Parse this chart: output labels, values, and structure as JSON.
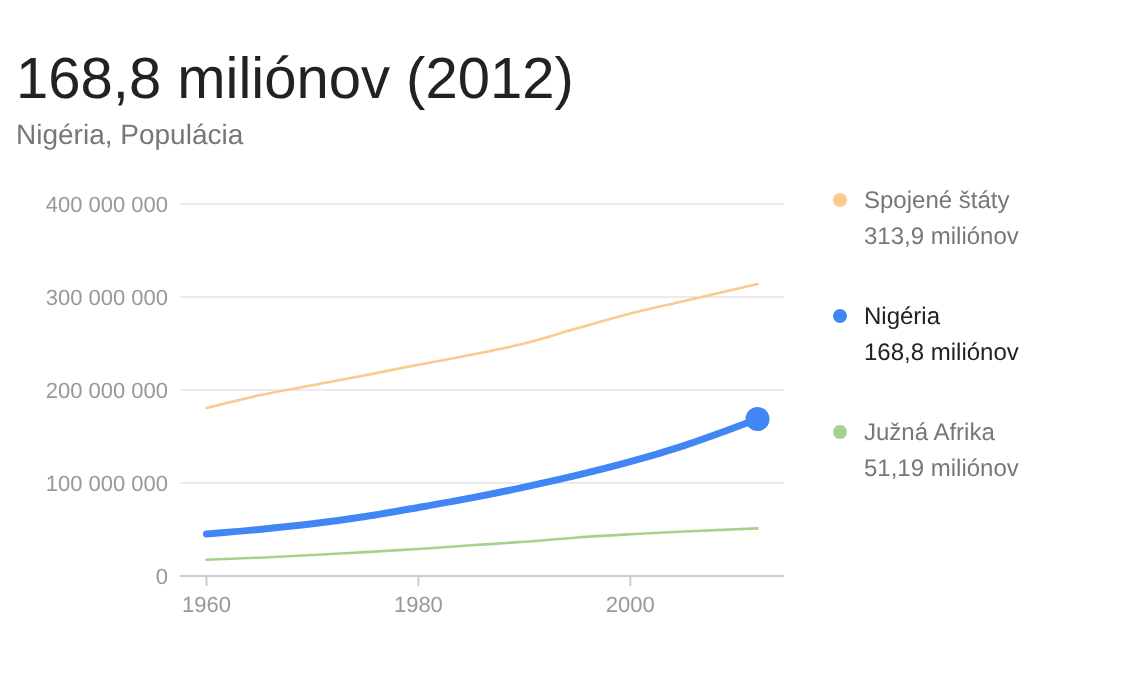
{
  "chart_data": {
    "type": "line",
    "title": "168,8 miliónov (2012)",
    "subtitle": "Nigéria, Populácia",
    "x": [
      1960,
      1965,
      1970,
      1975,
      1980,
      1985,
      1990,
      1995,
      2000,
      2005,
      2012
    ],
    "series": [
      {
        "name": "Spojené štáty",
        "color": "#f9cb8f",
        "values": [
          180700000,
          194300000,
          205100000,
          215900000,
          227200000,
          237900000,
          250000000,
          266300000,
          282200000,
          295500000,
          313900000
        ]
      },
      {
        "name": "Nigéria",
        "color": "#4285f4",
        "values": [
          45200000,
          50100000,
          56100000,
          64000000,
          73700000,
          84000000,
          95600000,
          108400000,
          122900000,
          140000000,
          168800000
        ]
      },
      {
        "name": "Južná Afrika",
        "color": "#a8d08d",
        "values": [
          17400000,
          19700000,
          22500000,
          25700000,
          29100000,
          33000000,
          36800000,
          41400000,
          44900000,
          47900000,
          51190000
        ]
      },
      {
        "type": "scatter",
        "color": "#4285f4",
        "x": [
          2012
        ],
        "values": [
          168800000
        ]
      }
    ],
    "annotations": [
      "313,9 miliónov",
      "168,8 miliónov",
      "51,19 miliónov"
    ],
    "xlim": [
      1957.5,
      2014.5
    ],
    "xticks": [
      1960,
      1980,
      2000
    ],
    "ylim": [
      0,
      400000000
    ],
    "yticks": [
      {
        "value": 0,
        "label": "0"
      },
      {
        "value": 100000000,
        "label": "100 000 000"
      },
      {
        "value": 200000000,
        "label": "200 000 000"
      },
      {
        "value": 300000000,
        "label": "300 000 000"
      },
      {
        "value": 400000000,
        "label": "400 000 000"
      }
    ],
    "grid": "y",
    "legend": "right"
  }
}
